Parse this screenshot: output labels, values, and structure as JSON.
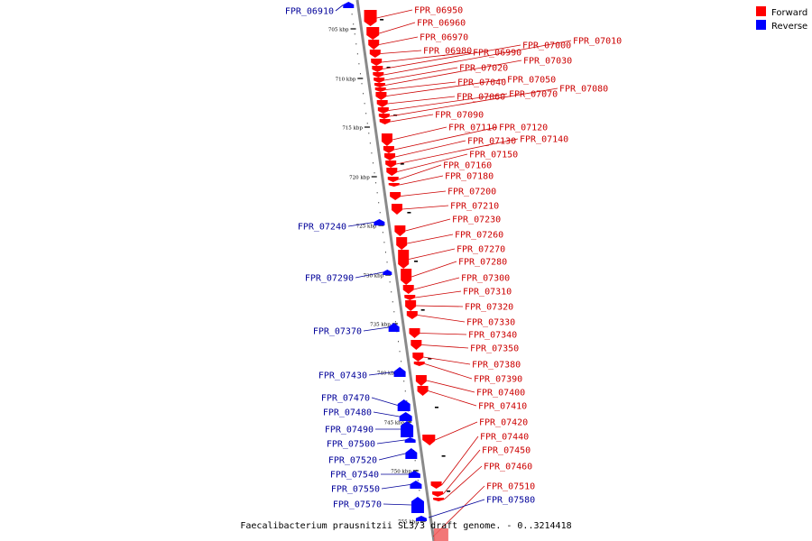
{
  "caption": "Faecalibacterium prausnitzii SL3/3 draft genome. - 0..3214418",
  "legend": {
    "forward_label": "Forward",
    "reverse_label": "Reverse",
    "forward_color": "#ff0000",
    "reverse_color": "#0000ff"
  },
  "colors": {
    "backbone": "#8a8a8a",
    "forward_label": "#cc0000",
    "reverse_label": "#000099"
  },
  "ticks": [
    "705 kbp",
    "710 kbp",
    "715 kbp",
    "720 kbp",
    "725 kbp",
    "730 kbp",
    "735 kbp",
    "740 kbp",
    "745 kbp",
    "750 kbp",
    "755 kbp"
  ],
  "forward_genes": [
    "FPR_06950",
    "FPR_06960",
    "FPR_06970",
    "FPR_06980",
    "FPR_06990",
    "FPR_07000",
    "FPR_07010",
    "FPR_07020",
    "FPR_07030",
    "FPR_07040",
    "FPR_07050",
    "FPR_07060",
    "FPR_07070",
    "FPR_07080",
    "FPR_07090",
    "FPR_07110",
    "FPR_07120",
    "FPR_07130",
    "FPR_07140",
    "FPR_07150",
    "FPR_07160",
    "FPR_07180",
    "FPR_07200",
    "FPR_07210",
    "FPR_07230",
    "FPR_07260",
    "FPR_07270",
    "FPR_07280",
    "FPR_07300",
    "FPR_07310",
    "FPR_07320",
    "FPR_07330",
    "FPR_07340",
    "FPR_07350",
    "FPR_07380",
    "FPR_07390",
    "FPR_07400",
    "FPR_07410",
    "FPR_07420",
    "FPR_07440",
    "FPR_07450",
    "FPR_07460",
    "FPR_07510"
  ],
  "reverse_genes": [
    "FPR_06910",
    "FPR_07240",
    "FPR_07290",
    "FPR_07370",
    "FPR_07430",
    "FPR_07470",
    "FPR_07480",
    "FPR_07490",
    "FPR_07500",
    "FPR_07520",
    "FPR_07540",
    "FPR_07550",
    "FPR_07570",
    "FPR_07580"
  ]
}
